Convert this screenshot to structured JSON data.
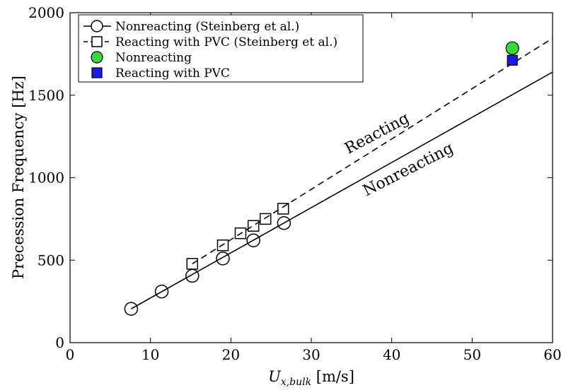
{
  "chart_data": {
    "type": "scatter",
    "xlabel_main": "U",
    "xlabel_sub": "x,bulk",
    "xlabel_unit": " [m/s]",
    "ylabel": "Precession Frequency [Hz]",
    "xlim": [
      0,
      60
    ],
    "ylim": [
      0,
      2000
    ],
    "xticks": [
      0,
      10,
      20,
      30,
      40,
      50,
      60
    ],
    "yticks": [
      0,
      500,
      1000,
      1500,
      2000
    ],
    "grid": false,
    "legend_position": "top-left",
    "series": [
      {
        "name": "Nonreacting (Steinberg et al.)",
        "marker": "circle-open",
        "fit_line": "solid",
        "x": [
          7.6,
          11.4,
          15.2,
          19.0,
          22.8,
          26.6
        ],
        "y": [
          205,
          310,
          405,
          510,
          620,
          725
        ]
      },
      {
        "name": "Reacting with PVC (Steinberg et al.)",
        "marker": "square-open",
        "fit_line": "dashed",
        "x": [
          15.2,
          19.0,
          21.2,
          22.8,
          24.3,
          26.5
        ],
        "y": [
          478,
          590,
          663,
          708,
          750,
          812
        ]
      },
      {
        "name": "Nonreacting",
        "marker": "circle-filled",
        "color": "#33dd33",
        "x": [
          55
        ],
        "y": [
          1785
        ]
      },
      {
        "name": "Reacting with PVC",
        "marker": "square-filled",
        "color": "#1a1aee",
        "x": [
          55
        ],
        "y": [
          1712
        ]
      }
    ],
    "trend_lines": [
      {
        "label": "Nonreacting",
        "style": "solid",
        "x": [
          7.6,
          60
        ],
        "y": [
          205,
          1640
        ]
      },
      {
        "label": "Reacting",
        "style": "dashed",
        "x": [
          15.2,
          60
        ],
        "y": [
          478,
          1845
        ]
      }
    ],
    "annotations": [
      "Reacting",
      "Nonreacting"
    ]
  }
}
